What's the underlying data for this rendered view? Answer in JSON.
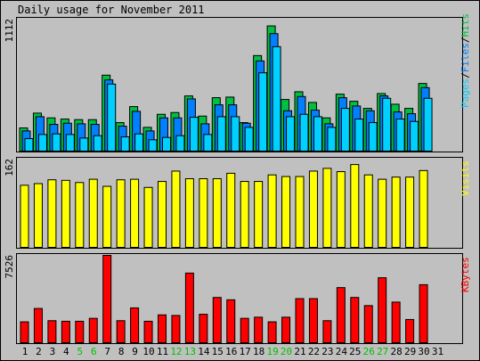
{
  "title": "Daily usage for November 2011",
  "colors": {
    "background": "#c0c0c0",
    "hits": "#00c040",
    "files": "#0080ff",
    "pages": "#00d0ff",
    "visits": "#ffff00",
    "kbytes": "#ff0000",
    "weekend_label": "#00c000",
    "text": "#000000"
  },
  "chart_data": [
    {
      "type": "bar",
      "panel": "hits-files-pages",
      "ymax_label": "1112",
      "ylim": [
        0,
        1112
      ],
      "legend": {
        "parts": [
          "Pages",
          "Files",
          "Hits"
        ],
        "separator": "/",
        "placement": "right, vertical"
      },
      "categories": [
        "1",
        "2",
        "3",
        "4",
        "5",
        "6",
        "7",
        "8",
        "9",
        "10",
        "11",
        "12",
        "13",
        "14",
        "15",
        "16",
        "17",
        "18",
        "19",
        "20",
        "21",
        "22",
        "23",
        "24",
        "25",
        "26",
        "27",
        "28",
        "29",
        "30",
        "31"
      ],
      "weekend_days": [
        "5",
        "6",
        "12",
        "13",
        "19",
        "20",
        "26",
        "27"
      ],
      "series": [
        {
          "name": "Hits",
          "values": [
            195,
            320,
            280,
            270,
            265,
            265,
            640,
            240,
            375,
            200,
            310,
            325,
            465,
            295,
            450,
            455,
            240,
            805,
            1055,
            435,
            500,
            410,
            280,
            480,
            420,
            360,
            485,
            395,
            360,
            570,
            0
          ]
        },
        {
          "name": "Files",
          "values": [
            170,
            290,
            225,
            235,
            230,
            225,
            600,
            210,
            335,
            170,
            280,
            280,
            440,
            230,
            390,
            390,
            235,
            760,
            990,
            340,
            460,
            345,
            230,
            450,
            380,
            340,
            465,
            330,
            315,
            535,
            0
          ]
        },
        {
          "name": "Pages",
          "values": [
            105,
            140,
            145,
            140,
            110,
            130,
            565,
            120,
            145,
            95,
            115,
            130,
            285,
            140,
            290,
            290,
            200,
            660,
            880,
            290,
            310,
            290,
            200,
            360,
            270,
            240,
            445,
            270,
            250,
            445,
            0
          ]
        }
      ]
    },
    {
      "type": "bar",
      "panel": "visits",
      "ymax_label": "162",
      "ylim": [
        0,
        162
      ],
      "legend": {
        "parts": [
          "Visits"
        ],
        "placement": "right, vertical"
      },
      "categories": [
        "1",
        "2",
        "3",
        "4",
        "5",
        "6",
        "7",
        "8",
        "9",
        "10",
        "11",
        "12",
        "13",
        "14",
        "15",
        "16",
        "17",
        "18",
        "19",
        "20",
        "21",
        "22",
        "23",
        "24",
        "25",
        "26",
        "27",
        "28",
        "29",
        "30",
        "31"
      ],
      "series": [
        {
          "name": "Visits",
          "values": [
            114,
            117,
            124,
            123,
            119,
            125,
            112,
            124,
            125,
            110,
            121,
            140,
            126,
            126,
            126,
            136,
            121,
            121,
            133,
            130,
            130,
            140,
            145,
            139,
            152,
            133,
            125,
            129,
            129,
            141,
            0
          ]
        }
      ]
    },
    {
      "type": "bar",
      "panel": "kbytes",
      "ymax_label": "7526",
      "ylim": [
        0,
        7526
      ],
      "legend": {
        "parts": [
          "KBytes"
        ],
        "placement": "right, vertical"
      },
      "categories": [
        "1",
        "2",
        "3",
        "4",
        "5",
        "6",
        "7",
        "8",
        "9",
        "10",
        "11",
        "12",
        "13",
        "14",
        "15",
        "16",
        "17",
        "18",
        "19",
        "20",
        "21",
        "22",
        "23",
        "24",
        "25",
        "26",
        "27",
        "28",
        "29",
        "30",
        "31"
      ],
      "series": [
        {
          "name": "KBytes",
          "values": [
            1800,
            2950,
            1900,
            1850,
            1850,
            2100,
            7526,
            1900,
            3000,
            1850,
            2400,
            2350,
            6000,
            2450,
            3900,
            3700,
            2100,
            2200,
            1800,
            2200,
            3800,
            3800,
            1900,
            4750,
            3900,
            3200,
            5600,
            3500,
            2000,
            5000,
            0
          ]
        }
      ]
    }
  ]
}
